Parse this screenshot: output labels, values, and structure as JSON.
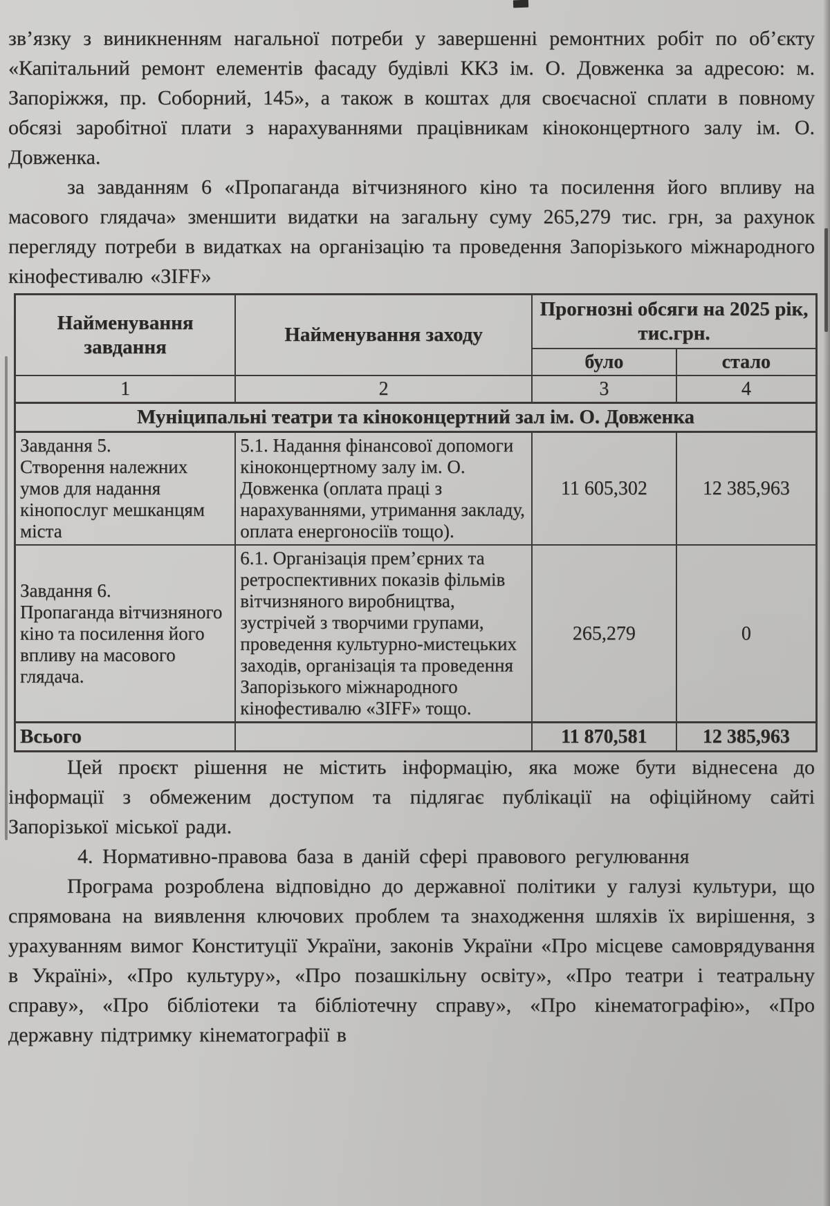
{
  "document": {
    "paragraphs": {
      "p1": "зв’язку з виникненням нагальної потреби у завершенні ремонтних робіт по об’єкту «Капітальний ремонт елементів фасаду будівлі ККЗ ім. О. Довженка за адресою: м. Запоріжжя, пр. Соборний, 145», а також в коштах для своєчасної сплати в повному обсязі заробітної плати з нарахуваннями працівникам кіноконцертного залу ім. О. Довженка.",
      "p2": "за завданням 6 «Пропаганда вітчизняного кіно та посилення його впливу на масового глядача» зменшити видатки на загальну суму 265,279 тис. грн, за рахунок перегляду потреби в видатках на організацію та проведення Запорізького міжнародного кінофестивалю «ЗІFF»",
      "p3": "Цей проєкт рішення не містить інформацію, яка може бути віднесена до інформації з обмеженим доступом та підлягає публікації на офіційному сайті Запорізької міської ради.",
      "p4": "4. Нормативно-правова база в даній сфері правового регулювання",
      "p5": "Програма розроблена відповідно до державної політики у галузі культури, що спрямована на виявлення ключових проблем та знаходження шляхів їх вирішення, з урахуванням вимог Конституції України, законів України «Про місцеве самоврядування в Україні», «Про культуру», «Про позашкільну освіту», «Про театри і театральну справу», «Про бібліотеки та бібліотечну справу», «Про кінематографію», «Про державну підтримку кінематографії в"
    }
  },
  "table": {
    "header": {
      "task": "Найменування завдання",
      "measure": "Найменування заходу",
      "forecast": "Прогнозні обсяги на 2025 рік, тис.грн.",
      "was": "було",
      "now": "стало",
      "nums": [
        "1",
        "2",
        "3",
        "4"
      ]
    },
    "section_title": "Муніципальні театри та кіноконцертний зал ім. О. Довженка",
    "rows": [
      {
        "task": "Завдання 5.\nСтворення належних умов для надання кінопослуг мешканцям міста",
        "measure": "5.1. Надання фінансової допомоги кіноконцертному залу ім. О. Довженка (оплата праці з нарахуваннями, утримання закладу, оплата енергоносіїв тощо).",
        "was": "11 605,302",
        "now": "12 385,963"
      },
      {
        "task": "Завдання 6.\nПропаганда вітчизняного кіно та посилення його впливу на масового глядача.",
        "measure": "6.1. Організація прем’єрних та ретроспективних показів фільмів вітчизняного виробництва, зустрічей з творчими групами, проведення культурно-мистецьких заходів, організація та проведення Запорізького міжнародного кінофестивалю «ЗІFF» тощо.",
        "was": "265,279",
        "now": "0"
      }
    ],
    "total": {
      "label": "Всього",
      "was": "11 870,581",
      "now": "12 385,963"
    }
  },
  "colors": {
    "paper": "#c8c7c5",
    "ink": "#292623",
    "table_border": "#3c3936"
  }
}
